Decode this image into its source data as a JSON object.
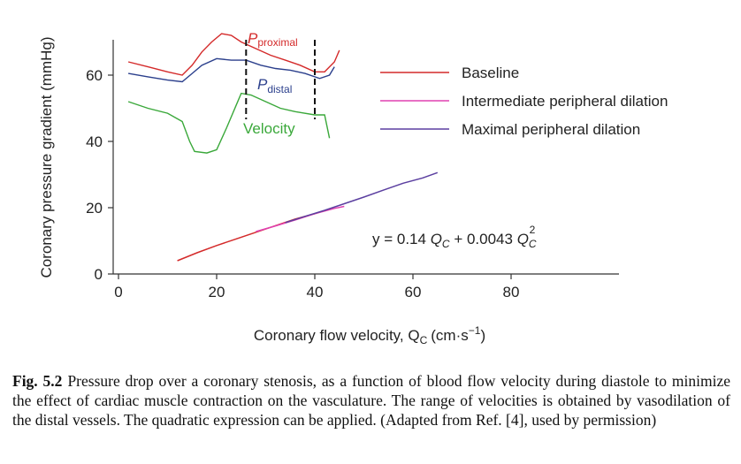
{
  "chart_data": {
    "type": "line",
    "xlabel": "Coronary flow velocity, Q",
    "xlabel_sub": "C",
    "xlabel_unit": "(cm·s",
    "xlabel_unit_exp": "−1",
    "xlabel_unit_close": ")",
    "ylabel": "Coronary pressure gradient (mmHg)",
    "xlim": [
      0,
      100
    ],
    "ylim": [
      0,
      70
    ],
    "xticks": [
      0,
      20,
      40,
      60,
      80
    ],
    "yticks": [
      0,
      20,
      40,
      60
    ],
    "grid": false,
    "legend_position": "right",
    "series": [
      {
        "name": "Baseline",
        "color": "#d42a2a",
        "x": [
          12,
          16,
          20,
          24,
          28,
          32,
          36,
          40,
          43
        ],
        "y": [
          4,
          6.4,
          8.6,
          10.6,
          12.6,
          14.6,
          16.6,
          18.2,
          19.6
        ]
      },
      {
        "name": "Intermediate peripheral dilation",
        "color": "#e040b0",
        "x": [
          28,
          32,
          36,
          40,
          44,
          46
        ],
        "y": [
          12.8,
          14.5,
          16.3,
          18.2,
          19.8,
          20.4
        ]
      },
      {
        "name": "Maximal peripheral dilation",
        "color": "#5b3fa0",
        "x": [
          34,
          38,
          42,
          46,
          50,
          54,
          58,
          62,
          65
        ],
        "y": [
          15.5,
          17.4,
          19.2,
          21.2,
          23.2,
          25.3,
          27.4,
          29.0,
          30.6
        ]
      }
    ],
    "inset": {
      "labels": {
        "p_proximal": "P",
        "p_proximal_sub": "proximal",
        "p_distal": "P",
        "p_distal_sub": "distal",
        "velocity": "Velocity"
      },
      "colors": {
        "proximal": "#d42a2a",
        "distal": "#2b3f8c",
        "velocity": "#3aa83a"
      },
      "proximal": [
        [
          2,
          64
        ],
        [
          6,
          62.5
        ],
        [
          10,
          61
        ],
        [
          13,
          60
        ],
        [
          15,
          63
        ],
        [
          17,
          67
        ],
        [
          19,
          70
        ],
        [
          21,
          72.5
        ],
        [
          23,
          72
        ],
        [
          25,
          70
        ],
        [
          28,
          68
        ],
        [
          31,
          66
        ],
        [
          34,
          64.5
        ],
        [
          37,
          63
        ],
        [
          40,
          61
        ],
        [
          42,
          61
        ],
        [
          44,
          64
        ],
        [
          45,
          67.5
        ]
      ],
      "distal": [
        [
          2,
          60.5
        ],
        [
          6,
          59.5
        ],
        [
          10,
          58.5
        ],
        [
          13,
          58
        ],
        [
          15,
          60.5
        ],
        [
          17,
          63
        ],
        [
          20,
          65
        ],
        [
          23,
          64.5
        ],
        [
          26,
          64.5
        ],
        [
          29,
          63
        ],
        [
          32,
          62
        ],
        [
          35,
          61.5
        ],
        [
          38,
          60.5
        ],
        [
          41,
          59
        ],
        [
          43,
          60
        ],
        [
          44,
          62.5
        ]
      ],
      "velocity": [
        [
          2,
          52
        ],
        [
          6,
          50
        ],
        [
          10,
          48.5
        ],
        [
          13,
          46
        ],
        [
          14.5,
          40
        ],
        [
          15.5,
          37
        ],
        [
          18,
          36.5
        ],
        [
          20,
          37.5
        ],
        [
          22,
          44
        ],
        [
          24,
          51
        ],
        [
          25,
          54.5
        ],
        [
          27,
          54
        ],
        [
          30,
          52
        ],
        [
          33,
          50
        ],
        [
          36,
          49
        ],
        [
          40,
          48
        ],
        [
          42,
          48
        ],
        [
          43,
          41
        ]
      ],
      "markers_x": [
        26,
        40
      ]
    },
    "annotation": {
      "prefix": "y = 0.14 ",
      "q1": "Q",
      "q1_sub": "C",
      "middle": " + 0.0043 ",
      "q2": "Q",
      "q2_sub": "C",
      "q2_sup": "2"
    }
  },
  "caption": {
    "label": "Fig. 5.2",
    "text": "Pressure drop over a coronary stenosis, as a function of blood flow velocity during diastole to minimize the effect of cardiac muscle contraction on the vasculature. The range of velocities is obtained by vasodilation of the distal vessels. The quadratic expression can be applied. (Adapted from Ref. [4], used by permission)"
  }
}
